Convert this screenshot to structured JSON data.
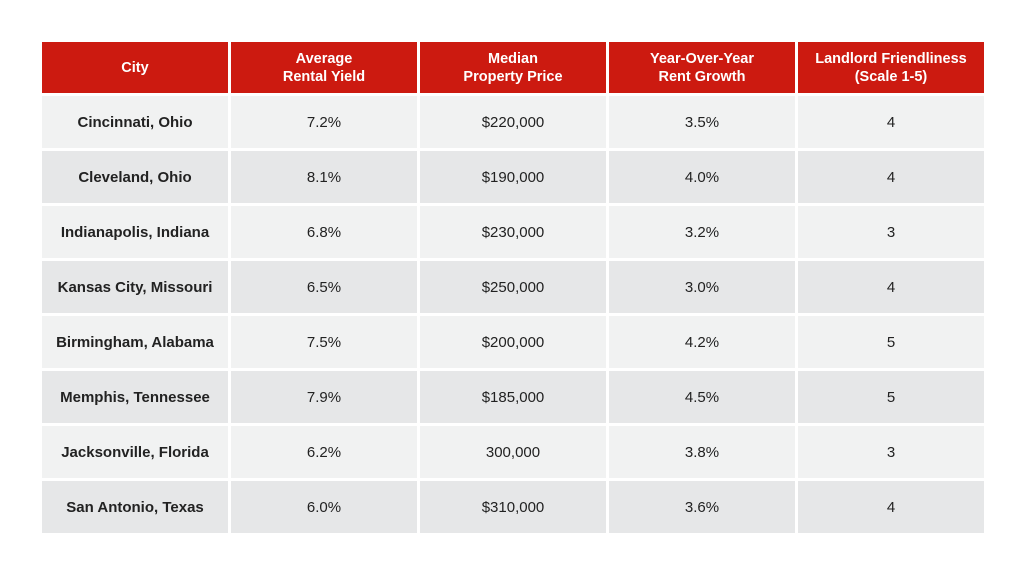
{
  "table": {
    "headers": [
      [
        "City"
      ],
      [
        "Average",
        "Rental Yield"
      ],
      [
        "Median",
        "Property Price"
      ],
      [
        "Year-Over-Year",
        "Rent Growth"
      ],
      [
        "Landlord Friendliness",
        "(Scale 1-5)"
      ]
    ],
    "rows": [
      [
        "Cincinnati, Ohio",
        "7.2%",
        "$220,000",
        "3.5%",
        "4"
      ],
      [
        "Cleveland, Ohio",
        "8.1%",
        "$190,000",
        "4.0%",
        "4"
      ],
      [
        "Indianapolis, Indiana",
        "6.8%",
        "$230,000",
        "3.2%",
        "3"
      ],
      [
        "Kansas City, Missouri",
        "6.5%",
        "$250,000",
        "3.0%",
        "4"
      ],
      [
        "Birmingham, Alabama",
        "7.5%",
        "$200,000",
        "4.2%",
        "5"
      ],
      [
        "Memphis, Tennessee",
        "7.9%",
        "$185,000",
        "4.5%",
        "5"
      ],
      [
        "Jacksonville, Florida",
        "6.2%",
        "300,000",
        "3.8%",
        "3"
      ],
      [
        "San Antonio, Texas",
        "6.0%",
        "$310,000",
        "3.6%",
        "4"
      ]
    ]
  },
  "colors": {
    "header_bg": "#cc1a10",
    "header_text": "#ffffff",
    "row_light": "#f1f2f2",
    "row_dark": "#e6e7e8"
  }
}
